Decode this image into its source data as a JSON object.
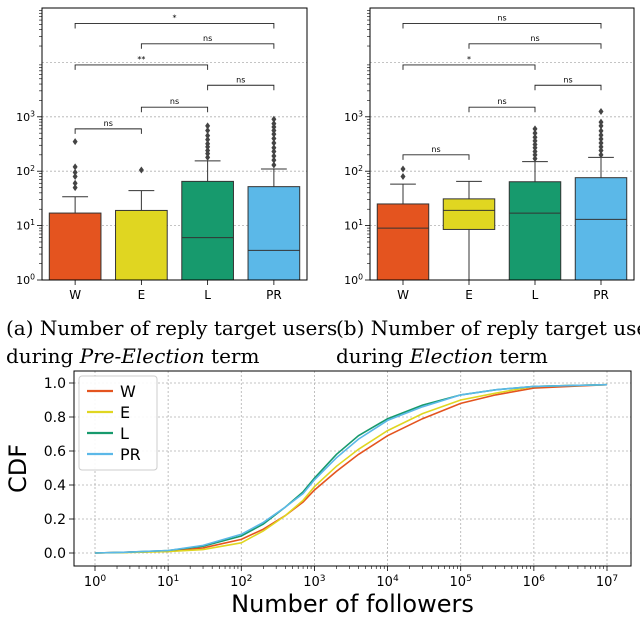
{
  "colors": {
    "W": "#e4541f",
    "E": "#e0d621",
    "L": "#179a6d",
    "PR": "#5bb8e8"
  },
  "captions": {
    "a": {
      "prefix": "(a) Number of reply target users",
      "line2_prefix": "during ",
      "line2_italic": "Pre-Election",
      "line2_suffix": " term"
    },
    "b": {
      "prefix": "(b) Number of reply target users",
      "line2_prefix": "during ",
      "line2_italic": "Election",
      "line2_suffix": " term"
    }
  },
  "chart_data": [
    {
      "type": "box",
      "id": "pre-election",
      "yscale": "log",
      "ylim": [
        1,
        100000
      ],
      "yticks": [
        {
          "v": 1,
          "label": "10^0"
        },
        {
          "v": 10,
          "label": "10^1"
        },
        {
          "v": 100,
          "label": "10^2"
        },
        {
          "v": 1000,
          "label": "10^3"
        }
      ],
      "categories": [
        "W",
        "E",
        "L",
        "PR"
      ],
      "boxes": [
        {
          "name": "W",
          "q1": 1,
          "median": 1,
          "q3": 17,
          "whisker_low": 1,
          "whisker_high": 34,
          "outliers": [
            50,
            60,
            80,
            95,
            120,
            350
          ]
        },
        {
          "name": "E",
          "q1": 1,
          "median": 1,
          "q3": 19,
          "whisker_low": 1,
          "whisker_high": 44,
          "outliers": [
            105
          ]
        },
        {
          "name": "L",
          "q1": 1,
          "median": 6,
          "q3": 65,
          "whisker_low": 1,
          "whisker_high": 155,
          "outliers": [
            180,
            210,
            240,
            280,
            320,
            380,
            450,
            560,
            680
          ]
        },
        {
          "name": "PR",
          "q1": 1,
          "median": 3.5,
          "q3": 52,
          "whisker_low": 1,
          "whisker_high": 110,
          "outliers": [
            130,
            160,
            190,
            230,
            270,
            330,
            400,
            480,
            560,
            650,
            750,
            900
          ]
        }
      ],
      "significance": [
        {
          "from": "W",
          "to": "E",
          "label": "ns",
          "y": 600
        },
        {
          "from": "L",
          "to": "PR",
          "label": "ns",
          "y": 3800
        },
        {
          "from": "E",
          "to": "L",
          "label": "ns",
          "y": 1500
        },
        {
          "from": "W",
          "to": "L",
          "label": "**",
          "y": 9000
        },
        {
          "from": "E",
          "to": "PR",
          "label": "ns",
          "y": 22000
        },
        {
          "from": "W",
          "to": "PR",
          "label": "*",
          "y": 52000
        }
      ]
    },
    {
      "type": "box",
      "id": "election",
      "yscale": "log",
      "ylim": [
        1,
        100000
      ],
      "yticks": [
        {
          "v": 1,
          "label": "10^0"
        },
        {
          "v": 10,
          "label": "10^1"
        },
        {
          "v": 100,
          "label": "10^2"
        },
        {
          "v": 1000,
          "label": "10^3"
        }
      ],
      "categories": [
        "W",
        "E",
        "L",
        "PR"
      ],
      "boxes": [
        {
          "name": "W",
          "q1": 1,
          "median": 9,
          "q3": 25,
          "whisker_low": 1,
          "whisker_high": 58,
          "outliers": [
            80,
            110
          ]
        },
        {
          "name": "E",
          "q1": 8.5,
          "median": 19,
          "q3": 31,
          "whisker_low": 1,
          "whisker_high": 65,
          "outliers": []
        },
        {
          "name": "L",
          "q1": 1,
          "median": 17,
          "q3": 64,
          "whisker_low": 1,
          "whisker_high": 150,
          "outliers": [
            170,
            200,
            230,
            270,
            310,
            360,
            420,
            500,
            600
          ]
        },
        {
          "name": "PR",
          "q1": 1,
          "median": 13,
          "q3": 76,
          "whisker_low": 1,
          "whisker_high": 180,
          "outliers": [
            200,
            240,
            280,
            330,
            390,
            460,
            550,
            680,
            800,
            1250
          ]
        }
      ],
      "significance": [
        {
          "from": "W",
          "to": "E",
          "label": "ns",
          "y": 200
        },
        {
          "from": "L",
          "to": "PR",
          "label": "ns",
          "y": 3800
        },
        {
          "from": "E",
          "to": "L",
          "label": "ns",
          "y": 1500
        },
        {
          "from": "W",
          "to": "L",
          "label": "*",
          "y": 9000
        },
        {
          "from": "E",
          "to": "PR",
          "label": "ns",
          "y": 22000
        },
        {
          "from": "W",
          "to": "PR",
          "label": "ns",
          "y": 52000
        }
      ]
    },
    {
      "type": "line",
      "id": "cdf",
      "xscale": "log",
      "xlim": [
        1,
        10000000
      ],
      "ylim": [
        0,
        1.0
      ],
      "xlabel": "Number of followers",
      "ylabel": "CDF",
      "xticks": [
        {
          "v": 1,
          "label": "10^0"
        },
        {
          "v": 10,
          "label": "10^1"
        },
        {
          "v": 100,
          "label": "10^2"
        },
        {
          "v": 1000,
          "label": "10^3"
        },
        {
          "v": 10000,
          "label": "10^4"
        },
        {
          "v": 100000,
          "label": "10^5"
        },
        {
          "v": 1000000,
          "label": "10^6"
        },
        {
          "v": 10000000,
          "label": "10^7"
        }
      ],
      "yticks": [
        0.0,
        0.2,
        0.4,
        0.6,
        0.8,
        1.0
      ],
      "grid": true,
      "legend": "top-left",
      "x": [
        1,
        3,
        10,
        30,
        100,
        200,
        400,
        700,
        1000,
        2000,
        4000,
        10000,
        30000,
        100000,
        300000,
        1000000,
        3000000,
        10000000
      ],
      "series": [
        {
          "name": "W",
          "values": [
            0,
            0.005,
            0.01,
            0.03,
            0.08,
            0.14,
            0.22,
            0.3,
            0.37,
            0.48,
            0.58,
            0.69,
            0.79,
            0.88,
            0.93,
            0.97,
            0.98,
            0.99
          ]
        },
        {
          "name": "E",
          "values": [
            0,
            0.003,
            0.008,
            0.02,
            0.06,
            0.13,
            0.22,
            0.31,
            0.39,
            0.51,
            0.61,
            0.72,
            0.82,
            0.9,
            0.94,
            0.98,
            0.985,
            0.99
          ]
        },
        {
          "name": "L",
          "values": [
            0,
            0.005,
            0.015,
            0.04,
            0.1,
            0.17,
            0.27,
            0.36,
            0.44,
            0.58,
            0.69,
            0.79,
            0.87,
            0.93,
            0.96,
            0.98,
            0.985,
            0.99
          ]
        },
        {
          "name": "PR",
          "values": [
            0,
            0.005,
            0.015,
            0.045,
            0.11,
            0.18,
            0.27,
            0.35,
            0.43,
            0.56,
            0.67,
            0.78,
            0.86,
            0.93,
            0.96,
            0.98,
            0.985,
            0.99
          ]
        }
      ]
    }
  ]
}
